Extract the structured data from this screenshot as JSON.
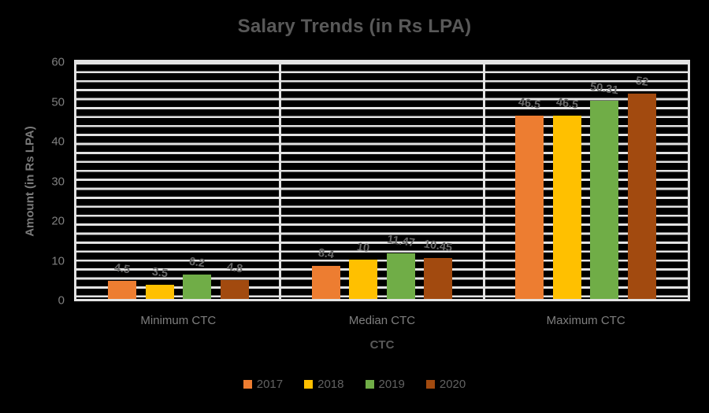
{
  "title": "Salary Trends (in Rs LPA)",
  "axes": {
    "y_title": "Amount (in Rs LPA)",
    "x_title": "CTC",
    "y_ticks": [
      0,
      10,
      20,
      30,
      40,
      50,
      60
    ]
  },
  "colors": {
    "background": "#000000",
    "stripe_line": "#e3e3e3",
    "title_text": "#595959",
    "axis_text": "#7f7f7f",
    "data_label_text": "#696969"
  },
  "chart_data": {
    "type": "bar",
    "title": "Salary Trends (in Rs LPA)",
    "xlabel": "CTC",
    "ylabel": "Amount (in Rs LPA)",
    "ylim": [
      0,
      60
    ],
    "grid": "horizontal-stripes-on-black",
    "legend_position": "bottom",
    "data_labels_rotated": true,
    "categories": [
      "Minimum CTC",
      "Median CTC",
      "Maximum CTC"
    ],
    "series": [
      {
        "name": "2017",
        "color": "#ED7D31",
        "values": [
          4.5,
          8.4,
          46.5
        ]
      },
      {
        "name": "2018",
        "color": "#FFC000",
        "values": [
          3.5,
          10,
          46.5
        ]
      },
      {
        "name": "2019",
        "color": "#70AD47",
        "values": [
          6.2,
          11.47,
          50.31
        ]
      },
      {
        "name": "2020",
        "color": "#A24A0F",
        "values": [
          4.8,
          10.45,
          52
        ]
      }
    ]
  }
}
